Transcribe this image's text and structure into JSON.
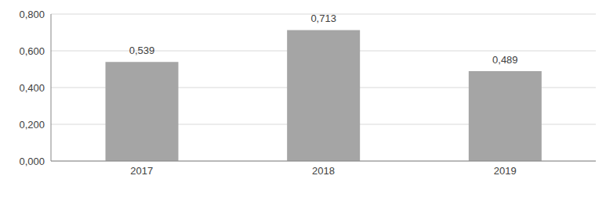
{
  "chart_data": {
    "type": "bar",
    "categories": [
      "2017",
      "2018",
      "2019"
    ],
    "values": [
      0.539,
      0.713,
      0.489
    ],
    "value_labels": [
      "0,539",
      "0,713",
      "0,489"
    ],
    "data_labels": true,
    "color": "#a5a5a5",
    "ylim": [
      0,
      0.8
    ],
    "yticks": [
      {
        "value": 0,
        "label": "0,000"
      },
      {
        "value": 0.2,
        "label": "0,200"
      },
      {
        "value": 0.4,
        "label": "0,400"
      },
      {
        "value": 0.6,
        "label": "0,600"
      },
      {
        "value": 0.8,
        "label": "0,800"
      }
    ],
    "grid": true
  }
}
